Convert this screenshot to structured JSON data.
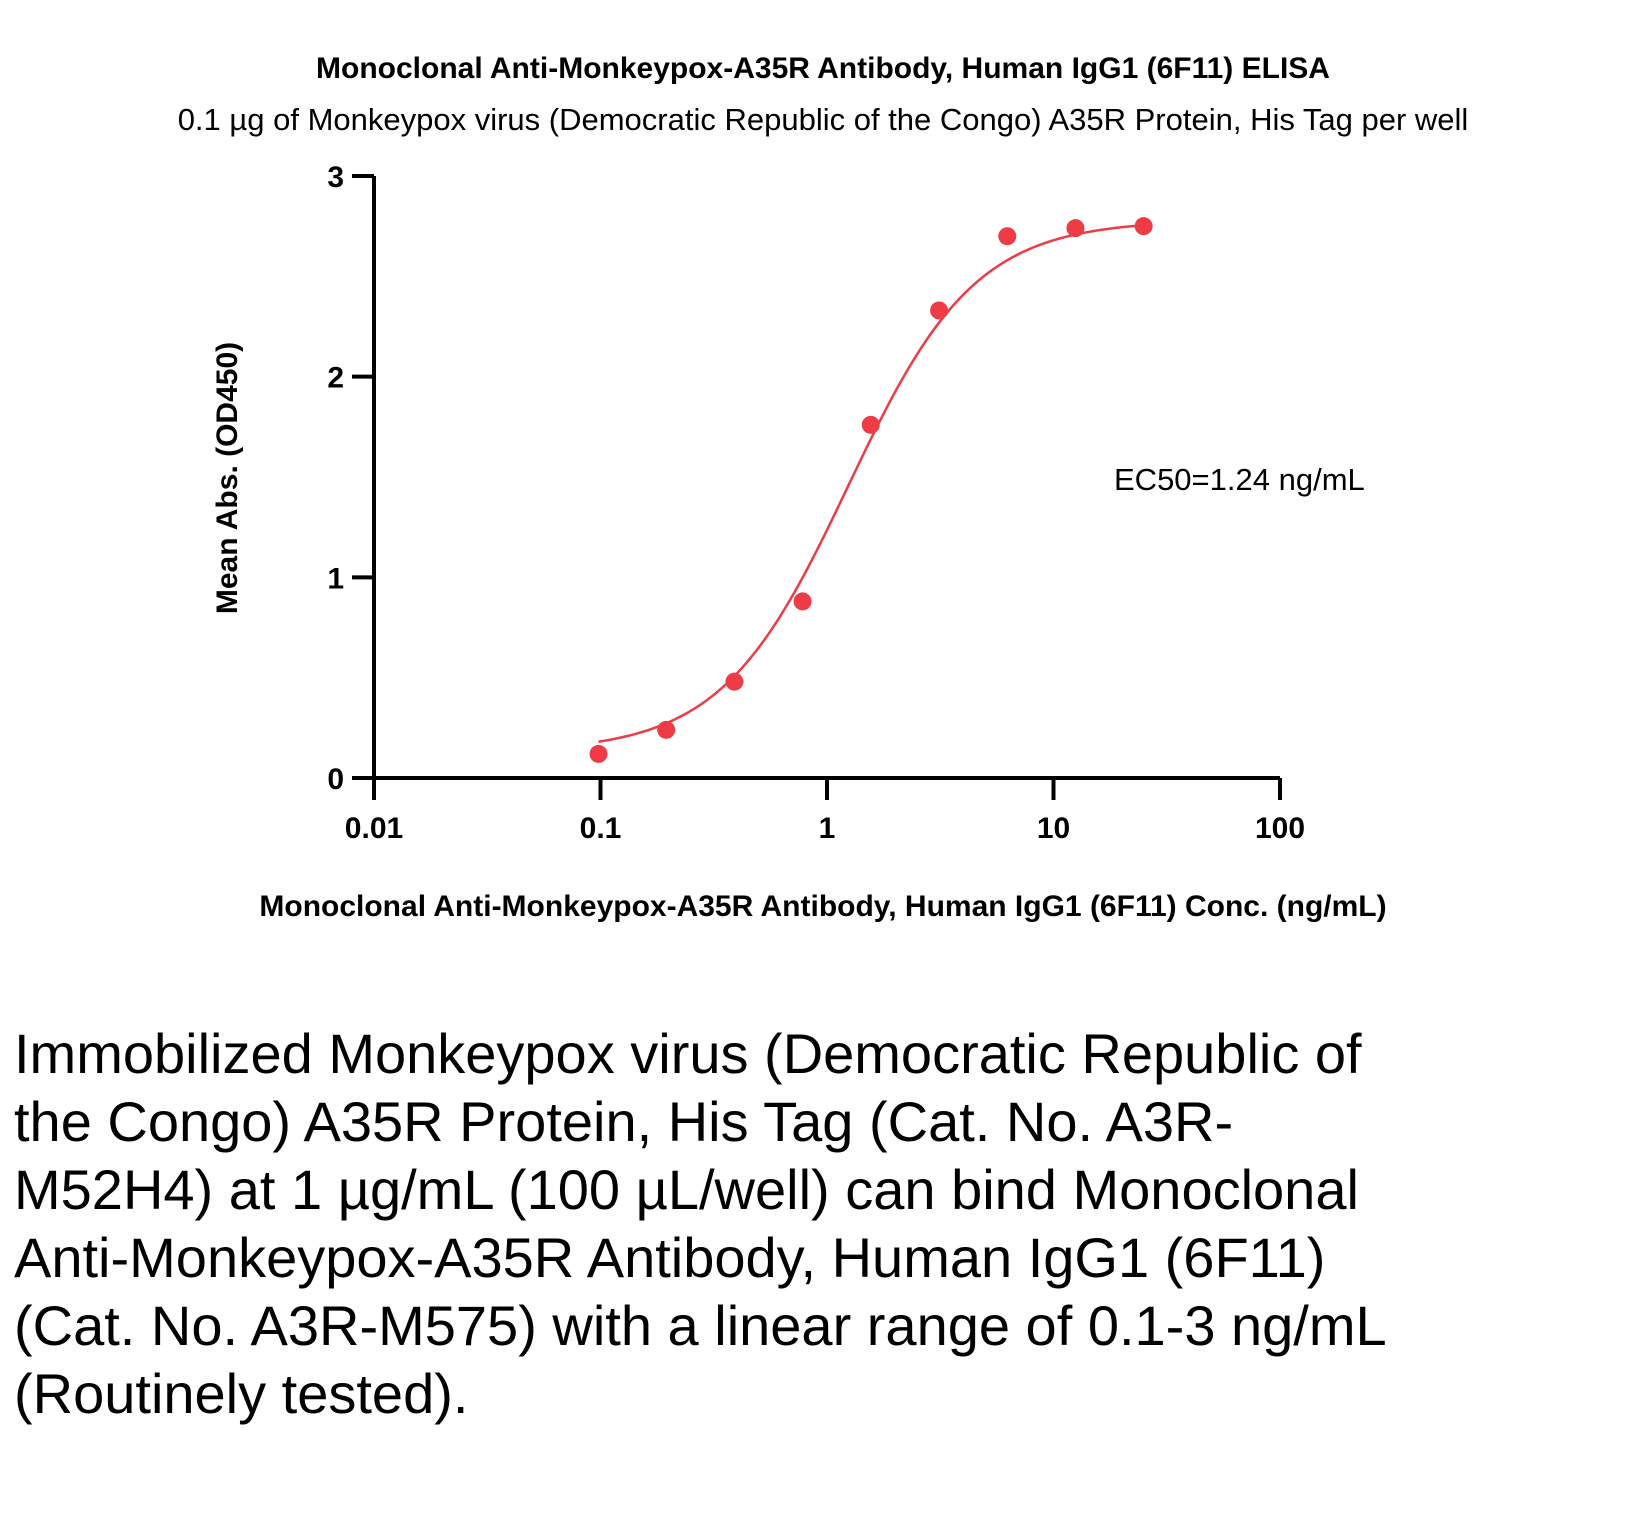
{
  "chart_data": {
    "type": "scatter",
    "title": "Monoclonal Anti-Monkeypox-A35R Antibody, Human IgG1 (6F11) ELISA",
    "subtitle": "0.1 µg of Monkeypox virus (Democratic Republic of the Congo) A35R Protein, His Tag per well",
    "xlabel": "Monoclonal Anti-Monkeypox-A35R Antibody, Human IgG1 (6F11) Conc. (ng/mL)",
    "ylabel": "Mean Abs. (OD450)",
    "xscale": "log",
    "xlim": [
      0.01,
      100
    ],
    "ylim": [
      0,
      3
    ],
    "x_ticks": [
      "0.01",
      "0.1",
      "1",
      "10",
      "100"
    ],
    "y_ticks": [
      "0",
      "1",
      "2",
      "3"
    ],
    "grid": false,
    "series": [
      {
        "x": [
          0.098,
          0.195,
          0.39,
          0.78,
          1.56,
          3.125,
          6.25,
          12.5,
          25
        ],
        "y": [
          0.12,
          0.24,
          0.48,
          0.88,
          1.76,
          2.33,
          2.7,
          2.74,
          2.75
        ],
        "color": "#ee3b45",
        "fit": "4PL sigmoidal curve"
      }
    ],
    "annotation": "EC50=1.24 ng/mL"
  },
  "caption": "Immobilized Monkeypox virus (Democratic Republic of the Congo) A35R Protein, His Tag (Cat. No. A3R-M52H4) at 1 µg/mL (100 µL/well) can bind Monoclonal Anti-Monkeypox-A35R Antibody, Human IgG1 (6F11) (Cat. No. A3R-M575) with a linear range of 0.1-3 ng/mL (Routinely tested)."
}
